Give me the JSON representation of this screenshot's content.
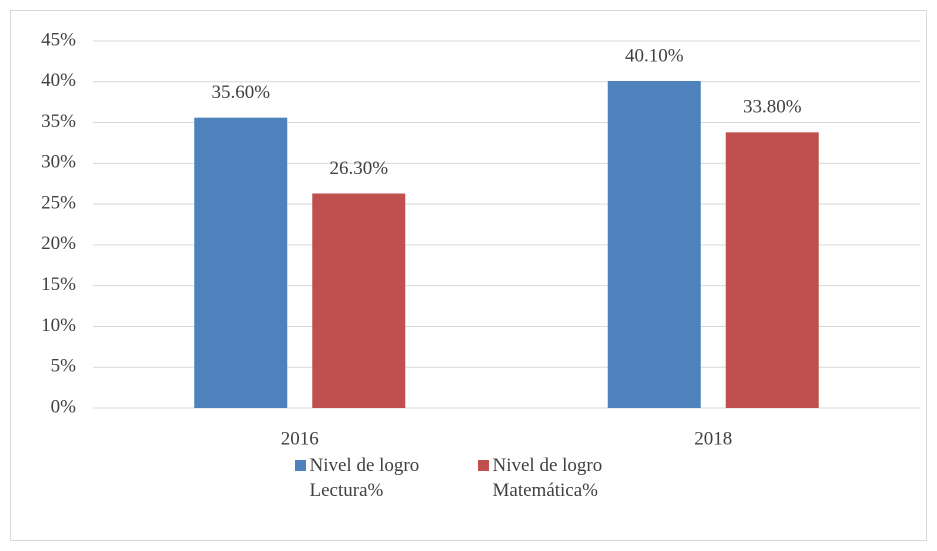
{
  "chart_data": {
    "type": "bar",
    "categories": [
      "2016",
      "2018"
    ],
    "series": [
      {
        "name": "Nivel de logro Lectura%",
        "color": "#4f81bd",
        "values": [
          35.6,
          40.1
        ],
        "value_labels": [
          "35.60%",
          "40.10%"
        ]
      },
      {
        "name": "Nivel de logro Matemática%",
        "color": "#c0504d",
        "values": [
          26.3,
          33.8
        ],
        "value_labels": [
          "26.30%",
          "33.80%"
        ]
      }
    ],
    "ylim": [
      0,
      45
    ],
    "yticks": [
      {
        "value": 0,
        "label": "0%"
      },
      {
        "value": 5,
        "label": "5%"
      },
      {
        "value": 10,
        "label": "10%"
      },
      {
        "value": 15,
        "label": "15%"
      },
      {
        "value": 20,
        "label": "20%"
      },
      {
        "value": 25,
        "label": "25%"
      },
      {
        "value": 30,
        "label": "30%"
      },
      {
        "value": 35,
        "label": "35%"
      },
      {
        "value": 40,
        "label": "40%"
      },
      {
        "value": 45,
        "label": "45%"
      }
    ],
    "grid": true,
    "legend": "bottom"
  }
}
